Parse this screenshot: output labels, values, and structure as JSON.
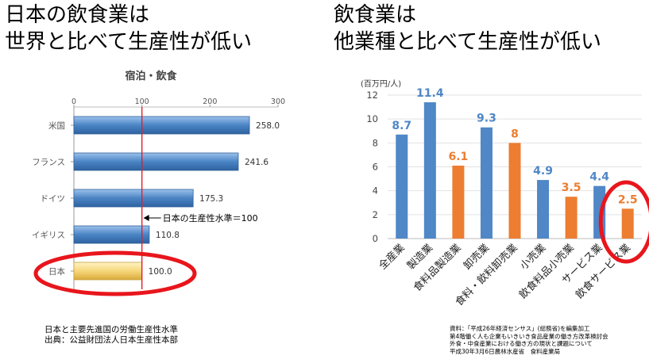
{
  "left": {
    "headline_line1": "日本の飲食業は",
    "headline_line2": "世界と比べて生産性が低い",
    "notes": [
      "日本と主要先進国の労働生産性水準",
      "出典：公益財団法人日本生産性本部"
    ]
  },
  "right": {
    "headline_line1": "飲食業は",
    "headline_line2": "他業種と比べて生産性が低い",
    "notes": [
      "資料：「平成26年経済センサス」(総務省)を編集加工",
      "第4階働く人も企業もいきいき食品産業の働き方改革検討会",
      "外食・中食産業における働き方の現状と課題について",
      "平成30年3月6日農林水産省　食料産業局"
    ]
  },
  "colors": {
    "left_bar": "#4a84c4",
    "left_bar_japan": "#f6d77a",
    "reference_line": "#e0202a",
    "right_blue": "#4f87c7",
    "right_orange": "#ec7d31",
    "highlight_ellipse": "#e8161c"
  },
  "chart_data": [
    {
      "type": "bar",
      "orientation": "horizontal",
      "title": "宿泊・飲食",
      "categories": [
        "米国",
        "フランス",
        "ドイツ",
        "イギリス",
        "日本"
      ],
      "values": [
        258.0,
        241.6,
        175.3,
        110.8,
        100.0
      ],
      "value_labels": [
        "258.0",
        "241.6",
        "175.3",
        "110.8",
        "100.0"
      ],
      "xlim": [
        0,
        300
      ],
      "xticks": [
        "0",
        "100",
        "200",
        "300"
      ],
      "reference_line": {
        "value": 100,
        "label": "日本の生産性水準＝100"
      },
      "highlight": "日本",
      "grid": false
    },
    {
      "type": "bar",
      "orientation": "vertical",
      "ylabel": "(百万円/人)",
      "categories": [
        "全産業",
        "製造業",
        "食料品製造業",
        "卸売業",
        "食料・飲料卸売業",
        "小売業",
        "飲食料品小売業",
        "サービス業",
        "飲食サービス業"
      ],
      "values": [
        8.7,
        11.4,
        6.1,
        9.3,
        8,
        4.9,
        3.5,
        4.4,
        2.5
      ],
      "value_labels": [
        "8.7",
        "11.4",
        "6.1",
        "9.3",
        "8",
        "4.9",
        "3.5",
        "4.4",
        "2.5"
      ],
      "series_color_roles": [
        "blue",
        "blue",
        "orange",
        "blue",
        "orange",
        "blue",
        "orange",
        "blue",
        "orange"
      ],
      "ylim": [
        0,
        12
      ],
      "yticks": [
        "0",
        "2",
        "4",
        "6",
        "8",
        "10",
        "12"
      ],
      "highlight": "飲食サービス業",
      "grid": true
    }
  ]
}
